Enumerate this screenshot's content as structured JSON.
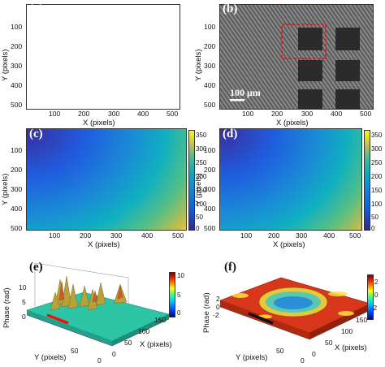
{
  "panels": {
    "a": {
      "tag": "(a)",
      "xlabel": "X (pixels)",
      "ylabel": "Y (pixels)",
      "xticks": [
        "100",
        "200",
        "300",
        "400",
        "500"
      ],
      "yticks": [
        "100",
        "200",
        "300",
        "400",
        "500"
      ]
    },
    "b": {
      "tag": "(b)",
      "xlabel": "X (pixels)",
      "ylabel": "Y (pixels)",
      "xticks": [
        "100",
        "200",
        "300",
        "400",
        "500"
      ],
      "yticks": [
        "100",
        "200",
        "300",
        "400",
        "500"
      ],
      "scalebar": "100 μm"
    },
    "c": {
      "tag": "(c)",
      "xlabel": "X (pixels)",
      "ylabel": "Y (pixels)",
      "xticks": [
        "100",
        "200",
        "300",
        "400",
        "500"
      ],
      "yticks": [
        "100",
        "200",
        "300",
        "400",
        "500"
      ],
      "cbar": [
        "350",
        "300",
        "250",
        "200",
        "150",
        "100",
        "50",
        "0"
      ]
    },
    "d": {
      "tag": "(d)",
      "xlabel": "X (pixels)",
      "ylabel": "Y (pixels)",
      "xticks": [
        "100",
        "200",
        "300",
        "400",
        "500"
      ],
      "yticks": [
        "100",
        "200",
        "300",
        "400",
        "500"
      ],
      "cbar": [
        "350",
        "300",
        "250",
        "200",
        "150",
        "100",
        "50",
        "0"
      ]
    },
    "e": {
      "tag": "(e)",
      "xlabel": "X (pixels)",
      "ylabel": "Y (pixels)",
      "zlabel": "Phase (rad)",
      "zticks": [
        "10",
        "5",
        "0"
      ],
      "yticks": [
        "0",
        "50"
      ],
      "xticks": [
        "0",
        "50",
        "100",
        "150"
      ],
      "cbar": [
        "10",
        "5",
        "0"
      ]
    },
    "f": {
      "tag": "(f)",
      "xlabel": "X (pixels)",
      "ylabel": "Y (pixels)",
      "zlabel": "Phase (rad)",
      "zticks": [
        "2",
        "0",
        "-2"
      ],
      "yticks": [
        "0",
        "50"
      ],
      "xticks": [
        "0",
        "50",
        "100",
        "150"
      ],
      "cbar": [
        "2",
        "0",
        "-2"
      ]
    }
  },
  "colors": {
    "accent_red": "#e11",
    "parula_low": "#3c2ea3",
    "parula_mid": "#1fa8c9",
    "parula_high": "#f9e31c"
  }
}
